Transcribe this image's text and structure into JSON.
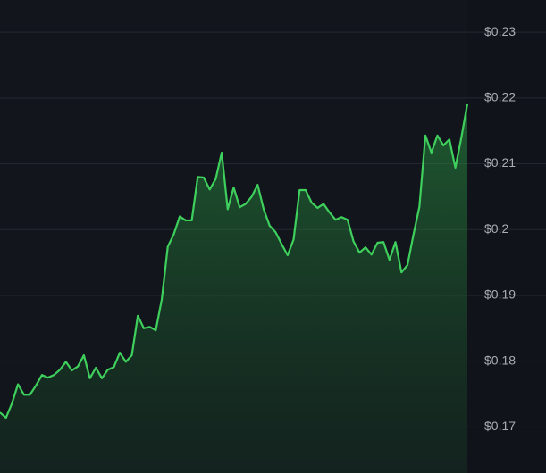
{
  "chart_data": {
    "type": "area",
    "color": "#3ecf5c",
    "values": [
      0.1722,
      0.1714,
      0.1736,
      0.1765,
      0.1749,
      0.1749,
      0.1763,
      0.1779,
      0.1775,
      0.1779,
      0.1787,
      0.1799,
      0.1786,
      0.1792,
      0.1809,
      0.1774,
      0.179,
      0.1774,
      0.1787,
      0.1791,
      0.1813,
      0.1799,
      0.1809,
      0.1869,
      0.185,
      0.1852,
      0.1847,
      0.1894,
      0.1974,
      0.1993,
      0.202,
      0.2014,
      0.2014,
      0.208,
      0.2079,
      0.2061,
      0.2077,
      0.2117,
      0.2031,
      0.2064,
      0.2034,
      0.2039,
      0.205,
      0.2068,
      0.2031,
      0.2006,
      0.1996,
      0.1978,
      0.1961,
      0.1985,
      0.206,
      0.206,
      0.2041,
      0.2033,
      0.2039,
      0.2026,
      0.2015,
      0.2019,
      0.2015,
      0.1982,
      0.1965,
      0.1973,
      0.1962,
      0.198,
      0.1981,
      0.1954,
      0.1981,
      0.1935,
      0.1946,
      0.1992,
      0.2035,
      0.2143,
      0.2117,
      0.2143,
      0.2128,
      0.2137,
      0.2094,
      0.214,
      0.2191
    ],
    "ylim": [
      0.163,
      0.2349
    ],
    "yticks": [
      {
        "value": 0.17,
        "label": "$0.17"
      },
      {
        "value": 0.18,
        "label": "$0.18"
      },
      {
        "value": 0.19,
        "label": "$0.19"
      },
      {
        "value": 0.2,
        "label": "$0.2"
      },
      {
        "value": 0.21,
        "label": "$0.21"
      },
      {
        "value": 0.22,
        "label": "$0.22"
      },
      {
        "value": 0.23,
        "label": "$0.23"
      }
    ],
    "grid": true
  }
}
